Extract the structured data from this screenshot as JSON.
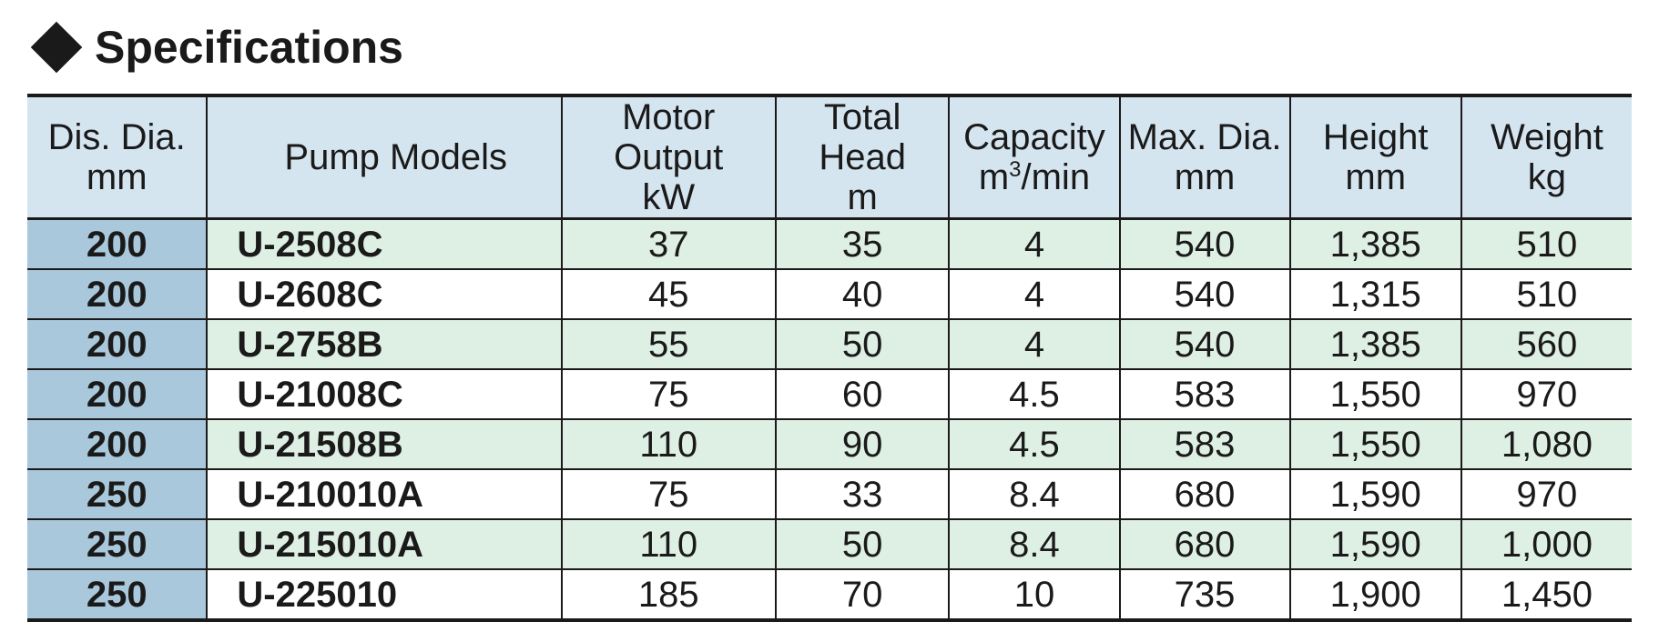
{
  "title": "Specifications",
  "headers": [
    {
      "line1": "Dis. Dia.",
      "line2": "mm"
    },
    {
      "line1": "Pump Models",
      "line2": ""
    },
    {
      "line1": "Motor Output",
      "line2": "kW"
    },
    {
      "line1": "Total Head",
      "line2": "m"
    },
    {
      "line1": "Capacity",
      "line2_pre": "m",
      "line2_sup": "3",
      "line2_post": "/min"
    },
    {
      "line1": "Max. Dia.",
      "line2": "mm"
    },
    {
      "line1": "Height",
      "line2": "mm"
    },
    {
      "line1": "Weight",
      "line2": "kg"
    }
  ],
  "rows": [
    {
      "dia": "200",
      "model": "U-2508C",
      "motor": "37",
      "head": "35",
      "capacity": "4",
      "max_dia": "540",
      "height": "1,385",
      "weight": "510"
    },
    {
      "dia": "200",
      "model": "U-2608C",
      "motor": "45",
      "head": "40",
      "capacity": "4",
      "max_dia": "540",
      "height": "1,315",
      "weight": "510"
    },
    {
      "dia": "200",
      "model": "U-2758B",
      "motor": "55",
      "head": "50",
      "capacity": "4",
      "max_dia": "540",
      "height": "1,385",
      "weight": "560"
    },
    {
      "dia": "200",
      "model": "U-21008C",
      "motor": "75",
      "head": "60",
      "capacity": "4.5",
      "max_dia": "583",
      "height": "1,550",
      "weight": "970"
    },
    {
      "dia": "200",
      "model": "U-21508B",
      "motor": "110",
      "head": "90",
      "capacity": "4.5",
      "max_dia": "583",
      "height": "1,550",
      "weight": "1,080"
    },
    {
      "dia": "250",
      "model": "U-210010A",
      "motor": "75",
      "head": "33",
      "capacity": "8.4",
      "max_dia": "680",
      "height": "1,590",
      "weight": "970"
    },
    {
      "dia": "250",
      "model": "U-215010A",
      "motor": "110",
      "head": "50",
      "capacity": "8.4",
      "max_dia": "680",
      "height": "1,590",
      "weight": "1,000"
    },
    {
      "dia": "250",
      "model": "U-225010",
      "motor": "185",
      "head": "70",
      "capacity": "10",
      "max_dia": "735",
      "height": "1,900",
      "weight": "1,450"
    }
  ],
  "colors": {
    "header_bg": "#d5e5f0",
    "dia_col_bg": "#aac8db",
    "odd_row_bg": "#deefe4",
    "even_row_bg": "#ffffff"
  }
}
